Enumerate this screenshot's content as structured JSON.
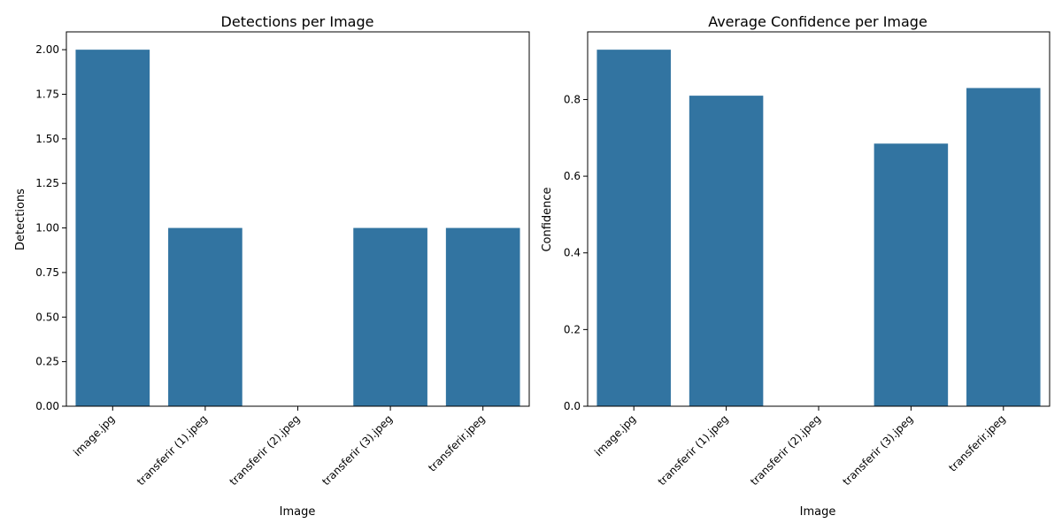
{
  "chart_data": [
    {
      "type": "bar",
      "title": "Detections per Image",
      "xlabel": "Image",
      "ylabel": "Detections",
      "categories": [
        "image.jpg",
        "transferir (1).jpeg",
        "transferir (2).jpeg",
        "transferir (3).jpeg",
        "transferir.jpeg"
      ],
      "values": [
        2,
        1,
        0,
        1,
        1
      ],
      "ylim": [
        0,
        2.1
      ],
      "yticks": [
        0,
        0.25,
        0.5,
        0.75,
        1.0,
        1.25,
        1.5,
        1.75,
        2.0
      ],
      "ytick_labels": [
        "0.00",
        "0.25",
        "0.50",
        "0.75",
        "1.00",
        "1.25",
        "1.50",
        "1.75",
        "2.00"
      ],
      "bar_color": "#3274a1",
      "grid": false
    },
    {
      "type": "bar",
      "title": "Average Confidence per Image",
      "xlabel": "Image",
      "ylabel": "Confidence",
      "categories": [
        "image.jpg",
        "transferir (1).jpeg",
        "transferir (2).jpeg",
        "transferir (3).jpeg",
        "transferir.jpeg"
      ],
      "values": [
        0.93,
        0.81,
        0,
        0.685,
        0.83
      ],
      "ylim": [
        0,
        0.9765
      ],
      "yticks": [
        0,
        0.2,
        0.4,
        0.6,
        0.8
      ],
      "ytick_labels": [
        "0.0",
        "0.2",
        "0.4",
        "0.6",
        "0.8"
      ],
      "bar_color": "#3274a1",
      "grid": false
    }
  ]
}
